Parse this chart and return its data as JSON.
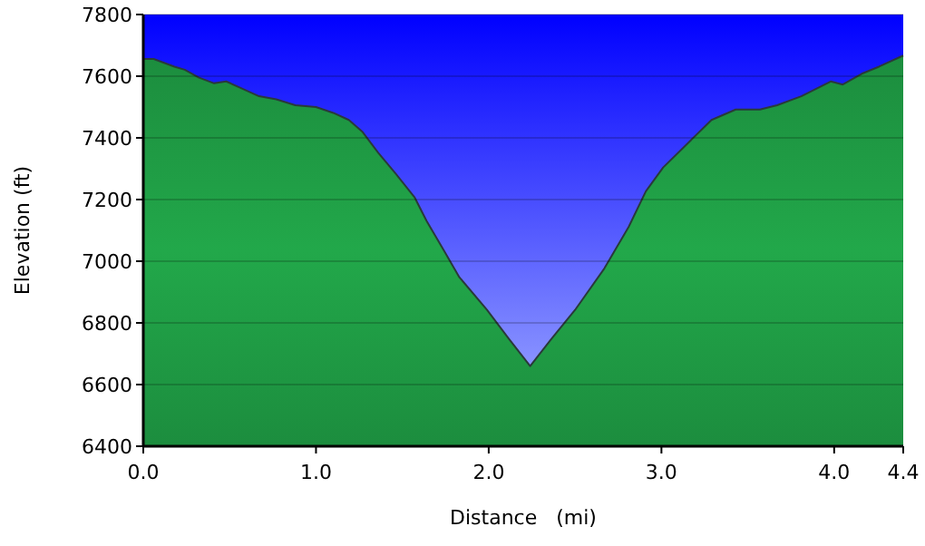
{
  "chart_data": {
    "type": "area",
    "xlabel": "Distance   (mi)",
    "ylabel": "Elevation (ft)",
    "x": [
      0,
      0.06,
      0.18,
      0.24,
      0.32,
      0.41,
      0.48,
      0.56,
      0.67,
      0.77,
      0.88,
      1.0,
      1.1,
      1.19,
      1.27,
      1.36,
      1.46,
      1.57,
      1.64,
      1.74,
      1.83,
      1.99,
      2.12,
      2.24,
      2.36,
      2.5,
      2.67,
      2.81,
      2.91,
      3.01,
      3.15,
      3.29,
      3.43,
      3.57,
      3.67,
      3.81,
      3.98,
      4.05,
      4.16,
      4.26,
      4.4
    ],
    "series": [
      {
        "color": "#22a84a",
        "values": [
          7656,
          7656,
          7631,
          7621,
          7596,
          7577,
          7583,
          7563,
          7535,
          7525,
          7506,
          7500,
          7481,
          7458,
          7419,
          7352,
          7285,
          7208,
          7131,
          7035,
          6948,
          6842,
          6746,
          6660,
          6746,
          6842,
          6977,
          7111,
          7227,
          7304,
          7381,
          7458,
          7492,
          7492,
          7506,
          7535,
          7583,
          7573,
          7608,
          7631,
          7667
        ]
      }
    ],
    "xlim": [
      0,
      4.4
    ],
    "xticks": [
      {
        "value": 0,
        "label": "0.0"
      },
      {
        "value": 1,
        "label": "1.0"
      },
      {
        "value": 2,
        "label": "2.0"
      },
      {
        "value": 3,
        "label": "3.0"
      },
      {
        "value": 4,
        "label": "4.0"
      },
      {
        "value": 4.4,
        "label": "4.4"
      }
    ],
    "ylim": [
      6400,
      7800
    ],
    "yticks": [
      6400,
      6600,
      6800,
      7000,
      7200,
      7400,
      7600,
      7800
    ],
    "grid": "y"
  }
}
